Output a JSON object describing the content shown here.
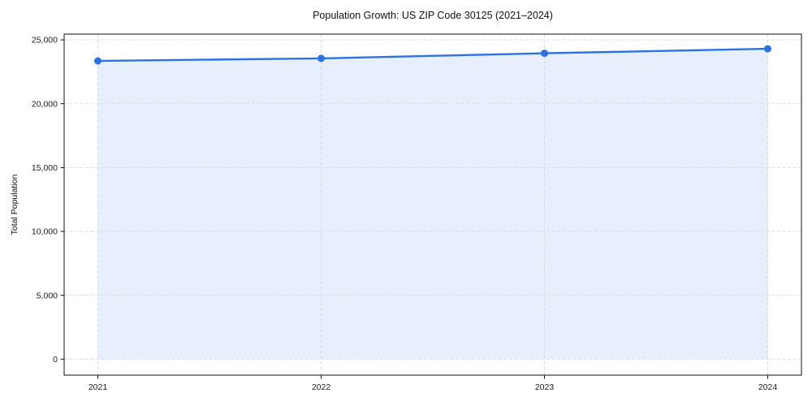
{
  "chart_data": {
    "type": "line",
    "style": "line-with-area-fill-and-markers",
    "title": "Population Growth: US ZIP Code 30125 (2021–2024)",
    "xlabel": "",
    "ylabel": "Total Population",
    "categories": [
      "2021",
      "2022",
      "2023",
      "2024"
    ],
    "series": [
      {
        "name": "Total Population",
        "values": [
          23350,
          23550,
          23950,
          24300
        ]
      }
    ],
    "ylim": [
      -1250,
      25450
    ],
    "yticks": [
      0,
      5000,
      10000,
      15000,
      20000,
      25000
    ],
    "ytick_labels": [
      "0",
      "5,000",
      "10,000",
      "15,000",
      "20,000",
      "25,000"
    ],
    "grid": true,
    "grid_style": "dashed",
    "legend": false,
    "colors": {
      "line": "#2b72e4",
      "marker": "#2b72e4",
      "fill": "#e8effc",
      "grid": "#d8d8d8",
      "spine": "#111111",
      "text": "#1a1a1a",
      "background": "#ffffff"
    }
  }
}
